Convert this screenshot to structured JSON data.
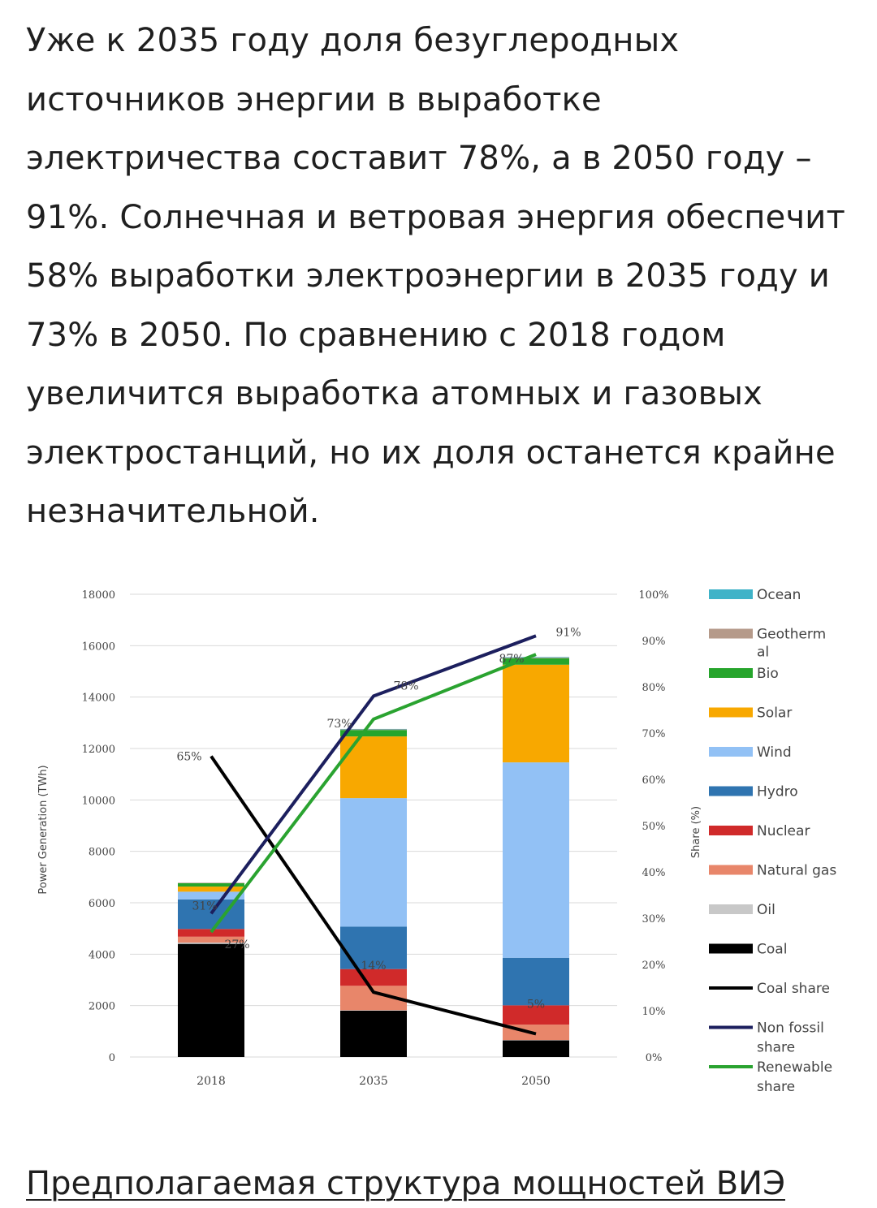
{
  "article": {
    "paragraph": "Уже к 2035 году доля безуглеродных источников энергии в выработке электричества составит 78%, а в 2050 году – 91%. Солнечная и ветровая энергия обеспечит 58% выработки электроэнергии в 2035 году и 73% в 2050. По сравнению с 2018 годом увеличится выработка атомных и газовых электростанций, но их доля останется крайне незначительной.",
    "next_heading": "Предполагаемая структура мощностей ВИЭ"
  },
  "chart_data": {
    "type": "bar",
    "stacked": true,
    "categories": [
      "2018",
      "2035",
      "2050"
    ],
    "ylabel": "Power Generation (TWh)",
    "y2label": "Share (%)",
    "ylim": [
      0,
      18000
    ],
    "y2lim": [
      0,
      100
    ],
    "yticks": [
      "0",
      "2000",
      "4000",
      "6000",
      "8000",
      "10000",
      "12000",
      "14000",
      "16000",
      "18000"
    ],
    "y2ticks": [
      "0%",
      "10%",
      "20%",
      "30%",
      "40%",
      "50%",
      "60%",
      "70%",
      "80%",
      "90%",
      "100%"
    ],
    "grid": true,
    "legend_position": "right",
    "series": [
      {
        "name": "Coal",
        "color": "#000000",
        "values": [
          4400,
          1800,
          650
        ]
      },
      {
        "name": "Oil",
        "color": "#c8c8c8",
        "values": [
          50,
          20,
          10
        ]
      },
      {
        "name": "Natural gas",
        "color": "#e8866a",
        "values": [
          230,
          950,
          600
        ]
      },
      {
        "name": "Nuclear",
        "color": "#d02a2a",
        "values": [
          300,
          650,
          750
        ]
      },
      {
        "name": "Hydro",
        "color": "#2f74b0",
        "values": [
          1150,
          1650,
          1850
        ]
      },
      {
        "name": "Wind",
        "color": "#92c1f5",
        "values": [
          300,
          5000,
          7600
        ]
      },
      {
        "name": "Solar",
        "color": "#f8a800",
        "values": [
          200,
          2400,
          3800
        ]
      },
      {
        "name": "Bio",
        "color": "#26a52c",
        "values": [
          130,
          250,
          250
        ]
      },
      {
        "name": "Geothermal",
        "legend_label": "Geotherm\nal",
        "color": "#b59a8a",
        "values": [
          20,
          30,
          30
        ]
      },
      {
        "name": "Ocean",
        "color": "#3fb3c8",
        "values": [
          0,
          10,
          20
        ]
      }
    ],
    "lines": [
      {
        "name": "Coal share",
        "color": "#000000",
        "values": [
          65,
          14,
          5
        ]
      },
      {
        "name": "Non fossil share",
        "legend_label": "Non fossil\nshare",
        "color": "#1c1f5e",
        "values": [
          31,
          78,
          91
        ]
      },
      {
        "name": "Renewable share",
        "legend_label": "Renewable\nshare",
        "color": "#2aa330",
        "values": [
          27,
          73,
          87
        ]
      }
    ],
    "annotations": [
      "65%",
      "31%",
      "27%",
      "78%",
      "73%",
      "14%",
      "91%",
      "87%",
      "5%"
    ]
  }
}
